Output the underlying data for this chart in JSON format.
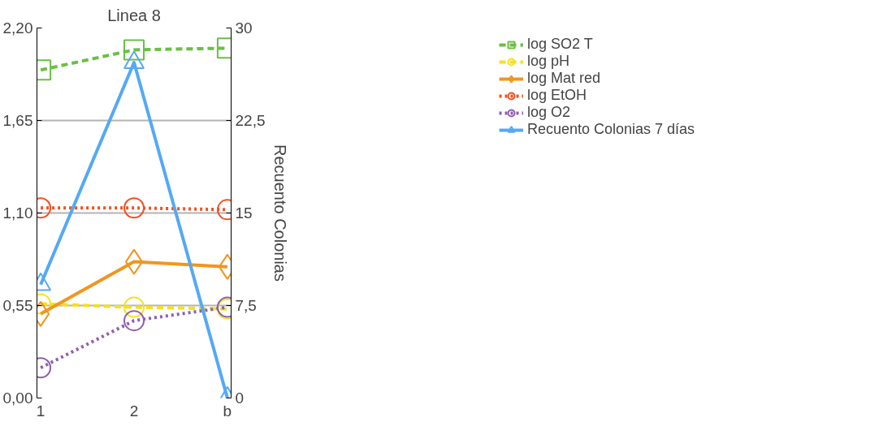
{
  "chart_data": {
    "type": "line",
    "title": "Linea 8",
    "y2label": "Recuento Colonias",
    "categories": [
      "1",
      "2",
      "b"
    ],
    "ylim": [
      0,
      2.2
    ],
    "yticks": [
      {
        "value": 0,
        "label": "0,00"
      },
      {
        "value": 0.55,
        "label": "0,55"
      },
      {
        "value": 1.1,
        "label": "1,10"
      },
      {
        "value": 1.65,
        "label": "1,65"
      },
      {
        "value": 2.2,
        "label": "2,20"
      }
    ],
    "y2lim": [
      0,
      30
    ],
    "y2ticks": [
      0,
      {
        "value": 7.5,
        "label": "7,5"
      },
      15,
      {
        "value": 22.5,
        "label": "22,5"
      },
      30
    ],
    "grid": "y",
    "legend": "right",
    "series": [
      {
        "name": "log SO2 T",
        "color": "#6abf45",
        "values": [
          1.95,
          2.07,
          2.08
        ],
        "marker": "square",
        "line_style": "dashed"
      },
      {
        "name": "log pH",
        "color": "#f5e11c",
        "values": [
          0.56,
          0.54,
          0.53
        ],
        "marker": "circle",
        "line_style": "dashed"
      },
      {
        "name": "log Mat red",
        "color": "#f0961e",
        "values": [
          0.5,
          0.81,
          0.78
        ],
        "marker": "diamond",
        "line_style": "solid"
      },
      {
        "name": "log EtOH",
        "color": "#f25022",
        "values": [
          1.13,
          1.13,
          1.12
        ],
        "marker": "circle",
        "line_style": "dotted"
      },
      {
        "name": "log O2",
        "color": "#8e5fb0",
        "values": [
          0.18,
          0.46,
          0.54
        ],
        "marker": "circle",
        "line_style": "dotted"
      },
      {
        "name": "Recuento Colonias 7 días",
        "color": "#55a9f5",
        "values": [
          9.2,
          27.2,
          0
        ],
        "marker": "triangle",
        "line_style": "solid",
        "axis": "y2"
      }
    ]
  }
}
